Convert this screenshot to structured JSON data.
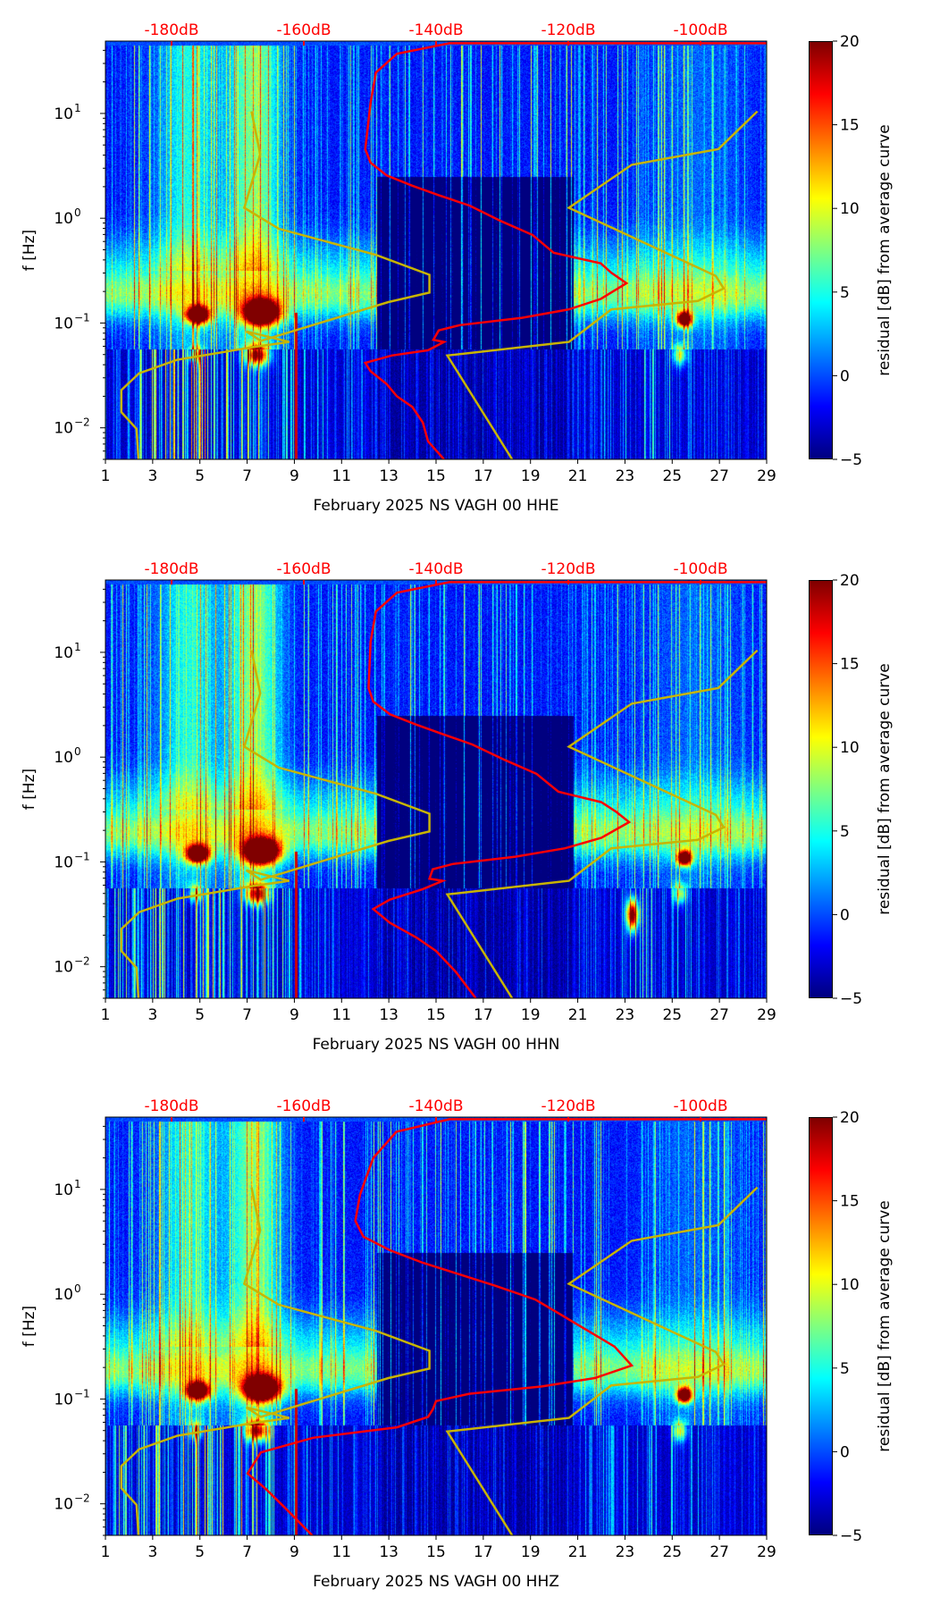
{
  "chart_data": {
    "type": "heatmap",
    "description_axes": {
      "x_ticks": [
        "1",
        "3",
        "5",
        "7",
        "9",
        "11",
        "13",
        "15",
        "17",
        "19",
        "21",
        "23",
        "25",
        "27",
        "29"
      ],
      "x_range_days": [
        1,
        29
      ],
      "y_label": "f [Hz]",
      "y_scale": "log",
      "y_range_hz": [
        0.005,
        49
      ],
      "y_ticks": [
        {
          "base": "10",
          "exp": "1",
          "log": 1
        },
        {
          "base": "10",
          "exp": "0",
          "log": 0
        },
        {
          "base": "10",
          "exp": "−1",
          "log": -1
        },
        {
          "base": "10",
          "exp": "−2",
          "log": -2
        }
      ],
      "top_axis_range_db": [
        -190,
        -90
      ],
      "top_ticks": [
        {
          "label": "-180dB",
          "db": -180
        },
        {
          "label": "-160dB",
          "db": -160
        },
        {
          "label": "-140dB",
          "db": -140
        },
        {
          "label": "-120dB",
          "db": -120
        },
        {
          "label": "-100dB",
          "db": -100
        }
      ],
      "colorbar_label": "residual [dB] from average curve",
      "colorbar_range": [
        -5,
        20
      ],
      "colorbar_ticks": [
        {
          "label": "20",
          "v": 20
        },
        {
          "label": "15",
          "v": 15
        },
        {
          "label": "10",
          "v": 10
        },
        {
          "label": "5",
          "v": 5
        },
        {
          "label": "0",
          "v": 0
        },
        {
          "label": "−5",
          "v": -5
        }
      ],
      "colormap": "jet"
    },
    "reference_curves": {
      "color": "#c8b400",
      "low_noise_model_db_log10f": [
        [
          -167.9,
          1.02
        ],
        [
          -166.6,
          0.61
        ],
        [
          -169.0,
          0.1
        ],
        [
          -163.8,
          -0.1
        ],
        [
          -149.1,
          -0.35
        ],
        [
          -141.0,
          -0.54
        ],
        [
          -141.0,
          -0.71
        ],
        [
          -147.2,
          -0.8
        ],
        [
          -166.5,
          -1.17
        ],
        [
          -168.7,
          -1.08
        ],
        [
          -162.2,
          -1.18
        ],
        [
          -167.7,
          -1.23
        ],
        [
          -179.1,
          -1.35
        ],
        [
          -184.9,
          -1.48
        ],
        [
          -187.6,
          -1.64
        ],
        [
          -187.6,
          -1.85
        ],
        [
          -185.3,
          -2.01
        ],
        [
          -185.0,
          -2.3
        ]
      ],
      "high_noise_model_db_log10f": [
        [
          -91.4,
          1.02
        ],
        [
          -97.3,
          0.66
        ],
        [
          -110.4,
          0.51
        ],
        [
          -119.9,
          0.1
        ],
        [
          -97.7,
          -0.55
        ],
        [
          -96.5,
          -0.67
        ],
        [
          -100.4,
          -0.79
        ],
        [
          -113.5,
          -0.87
        ],
        [
          -119.9,
          -1.18
        ],
        [
          -138.3,
          -1.31
        ],
        [
          -128.5,
          -2.3
        ]
      ]
    },
    "panels": [
      {
        "xlabel": "February 2025 NS VAGH 00 HHE",
        "average_curve_color": "#ff0000",
        "average_curve_db_log10f": [
          [
            -90,
            1.67
          ],
          [
            -138,
            1.67
          ],
          [
            -145.9,
            1.57
          ],
          [
            -149.1,
            1.39
          ],
          [
            -149.9,
            1.1
          ],
          [
            -150.7,
            0.66
          ],
          [
            -149.9,
            0.53
          ],
          [
            -147.5,
            0.41
          ],
          [
            -143.6,
            0.31
          ],
          [
            -139.6,
            0.22
          ],
          [
            -134.9,
            0.12
          ],
          [
            -130.1,
            -0.03
          ],
          [
            -125.4,
            -0.16
          ],
          [
            -122.2,
            -0.33
          ],
          [
            -115.1,
            -0.43
          ],
          [
            -113.5,
            -0.52
          ],
          [
            -111.2,
            -0.62
          ],
          [
            -115.1,
            -0.77
          ],
          [
            -119.9,
            -0.87
          ],
          [
            -127.0,
            -0.95
          ],
          [
            -136.4,
            -1.02
          ],
          [
            -139.6,
            -1.07
          ],
          [
            -140.4,
            -1.16
          ],
          [
            -138.8,
            -1.18
          ],
          [
            -141.2,
            -1.26
          ],
          [
            -146.7,
            -1.31
          ],
          [
            -150.7,
            -1.38
          ],
          [
            -149.9,
            -1.46
          ],
          [
            -147.5,
            -1.58
          ],
          [
            -145.9,
            -1.7
          ],
          [
            -143.6,
            -1.8
          ],
          [
            -142.0,
            -1.95
          ],
          [
            -141.2,
            -2.13
          ],
          [
            -138.8,
            -2.3
          ]
        ]
      },
      {
        "xlabel": "February 2025 NS VAGH 00 HHN",
        "average_curve_color": "#ff0000",
        "average_curve_db_log10f": [
          [
            -90,
            1.67
          ],
          [
            -138,
            1.67
          ],
          [
            -145.9,
            1.57
          ],
          [
            -149.1,
            1.39
          ],
          [
            -149.9,
            1.1
          ],
          [
            -150.2,
            0.66
          ],
          [
            -149.5,
            0.53
          ],
          [
            -147.0,
            0.41
          ],
          [
            -143.0,
            0.31
          ],
          [
            -139.0,
            0.22
          ],
          [
            -134.5,
            0.12
          ],
          [
            -129.5,
            -0.03
          ],
          [
            -124.8,
            -0.16
          ],
          [
            -121.5,
            -0.33
          ],
          [
            -115.0,
            -0.43
          ],
          [
            -112.8,
            -0.52
          ],
          [
            -110.8,
            -0.62
          ],
          [
            -115.0,
            -0.77
          ],
          [
            -120.5,
            -0.87
          ],
          [
            -128.0,
            -0.95
          ],
          [
            -137.5,
            -1.02
          ],
          [
            -140.5,
            -1.07
          ],
          [
            -141.0,
            -1.16
          ],
          [
            -139.0,
            -1.18
          ],
          [
            -142.0,
            -1.26
          ],
          [
            -147.0,
            -1.36
          ],
          [
            -149.5,
            -1.45
          ],
          [
            -147.0,
            -1.58
          ],
          [
            -143.0,
            -1.72
          ],
          [
            -140.0,
            -1.85
          ],
          [
            -137.0,
            -2.05
          ],
          [
            -134.0,
            -2.3
          ]
        ]
      },
      {
        "xlabel": "February 2025 NS VAGH 00 HHZ",
        "average_curve_color": "#ff0000",
        "average_curve_db_log10f": [
          [
            -90,
            1.67
          ],
          [
            -138,
            1.67
          ],
          [
            -146,
            1.55
          ],
          [
            -149.5,
            1.3
          ],
          [
            -151.5,
            0.95
          ],
          [
            -152.2,
            0.7
          ],
          [
            -151,
            0.55
          ],
          [
            -147,
            0.42
          ],
          [
            -142,
            0.3
          ],
          [
            -137,
            0.2
          ],
          [
            -131,
            0.08
          ],
          [
            -125,
            -0.05
          ],
          [
            -121,
            -0.2
          ],
          [
            -117,
            -0.35
          ],
          [
            -113,
            -0.5
          ],
          [
            -110.4,
            -0.68
          ],
          [
            -116,
            -0.8
          ],
          [
            -124,
            -0.88
          ],
          [
            -135,
            -0.95
          ],
          [
            -140,
            -1.02
          ],
          [
            -140.5,
            -1.1
          ],
          [
            -141.2,
            -1.17
          ],
          [
            -145.9,
            -1.27
          ],
          [
            -158.6,
            -1.37
          ],
          [
            -166.5,
            -1.51
          ],
          [
            -168.5,
            -1.71
          ],
          [
            -165.7,
            -1.86
          ],
          [
            -162.5,
            -2.06
          ],
          [
            -158.6,
            -2.31
          ]
        ]
      }
    ]
  }
}
